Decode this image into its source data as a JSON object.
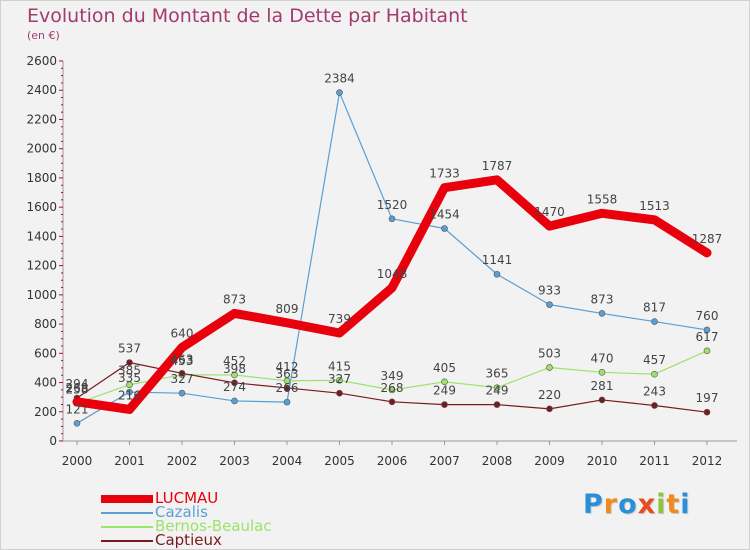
{
  "title": "Evolution du Montant de la Dette par Habitant",
  "unit": "(en €)",
  "logo": {
    "letters": [
      "P",
      "r",
      "o",
      "x",
      "i",
      "t",
      "i"
    ],
    "colors": [
      "#2a8fd6",
      "#f08a1c",
      "#2a8fd6",
      "#e84c1c",
      "#8cc63f",
      "#f08a1c",
      "#2a8fd6"
    ]
  },
  "chart_data": {
    "type": "line",
    "title": "Evolution du Montant de la Dette par Habitant",
    "ylabel": "(en €)",
    "xlabel": "",
    "x": [
      2000,
      2001,
      2002,
      2003,
      2004,
      2005,
      2006,
      2007,
      2008,
      2009,
      2010,
      2011,
      2012
    ],
    "ylim": [
      0,
      2600
    ],
    "yticks": [
      0,
      200,
      400,
      600,
      800,
      1000,
      1200,
      1400,
      1600,
      1800,
      2000,
      2200,
      2400,
      2600
    ],
    "grid": false,
    "legend_position": "bottom-left",
    "series": [
      {
        "name": "LUCMAU",
        "color": "#e8000d",
        "values": [
          268,
          216,
          640,
          873,
          809,
          739,
          1048,
          1733,
          1787,
          1470,
          1558,
          1513,
          1287
        ]
      },
      {
        "name": "Cazalis",
        "color": "#5a9fd4",
        "values": [
          121,
          335,
          327,
          274,
          266,
          2384,
          1520,
          1454,
          1141,
          933,
          873,
          817,
          760
        ]
      },
      {
        "name": "Bernos-Beaulac",
        "color": "#9be36a",
        "values": [
          258,
          385,
          453,
          452,
          412,
          415,
          349,
          405,
          365,
          503,
          470,
          457,
          617
        ]
      },
      {
        "name": "Captieux",
        "color": "#7a1a1f",
        "values": [
          294,
          537,
          463,
          398,
          363,
          327,
          268,
          249,
          249,
          220,
          281,
          243,
          197
        ]
      }
    ]
  }
}
